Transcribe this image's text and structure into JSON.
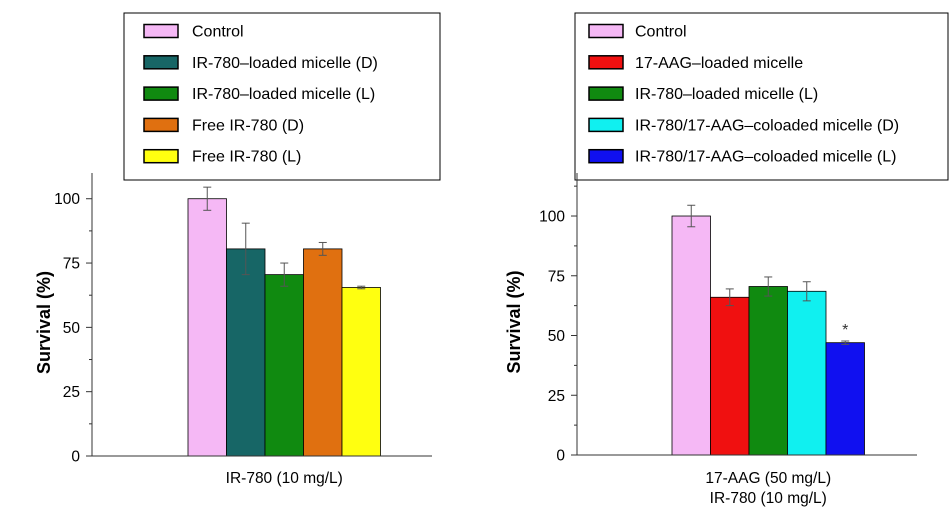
{
  "chart_data": [
    {
      "type": "bar",
      "ylabel": "Survival (%)",
      "category_label_lines": [
        "IR-780 (10 mg/L)"
      ],
      "ylim": [
        0,
        110
      ],
      "yticks": [
        0,
        25,
        50,
        75,
        100
      ],
      "minor_ticks": true,
      "grid": false,
      "legend_position": "top",
      "series": [
        {
          "name": "Control",
          "value": 100,
          "error": 4.5,
          "color": "#f5b8f5"
        },
        {
          "name": "IR-780–loaded micelle (D)",
          "value": 80.5,
          "error": 10,
          "color": "#176666"
        },
        {
          "name": "IR-780–loaded micelle (L)",
          "value": 70.5,
          "error": 4.5,
          "color": "#108a10"
        },
        {
          "name": "Free IR-780 (D)",
          "value": 80.5,
          "error": 2.5,
          "color": "#e07010"
        },
        {
          "name": "Free IR-780 (L)",
          "value": 65.5,
          "error": 0.5,
          "color": "#ffff10"
        }
      ],
      "annotations": []
    },
    {
      "type": "bar",
      "ylabel": "Survival (%)",
      "category_label_lines": [
        "17-AAG (50 mg/L)",
        "IR-780 (10 mg/L)"
      ],
      "ylim": [
        0,
        118
      ],
      "yticks": [
        0,
        25,
        50,
        75,
        100
      ],
      "minor_ticks": true,
      "grid": false,
      "legend_position": "top",
      "series": [
        {
          "name": "Control",
          "value": 100,
          "error": 4.5,
          "color": "#f5b8f5"
        },
        {
          "name": "17-AAG–loaded micelle",
          "value": 66,
          "error": 3.5,
          "color": "#f01010"
        },
        {
          "name": "IR-780–loaded micelle (L)",
          "value": 70.5,
          "error": 4,
          "color": "#108a10"
        },
        {
          "name": "IR-780/17-AAG–coloaded micelle (D)",
          "value": 68.5,
          "error": 4,
          "color": "#10f0f0"
        },
        {
          "name": "IR-780/17-AAG–coloaded micelle (L)",
          "value": 47,
          "error": 0.7,
          "color": "#1010f0"
        }
      ],
      "annotations": [
        {
          "series_index": 4,
          "text": "*"
        }
      ]
    }
  ]
}
